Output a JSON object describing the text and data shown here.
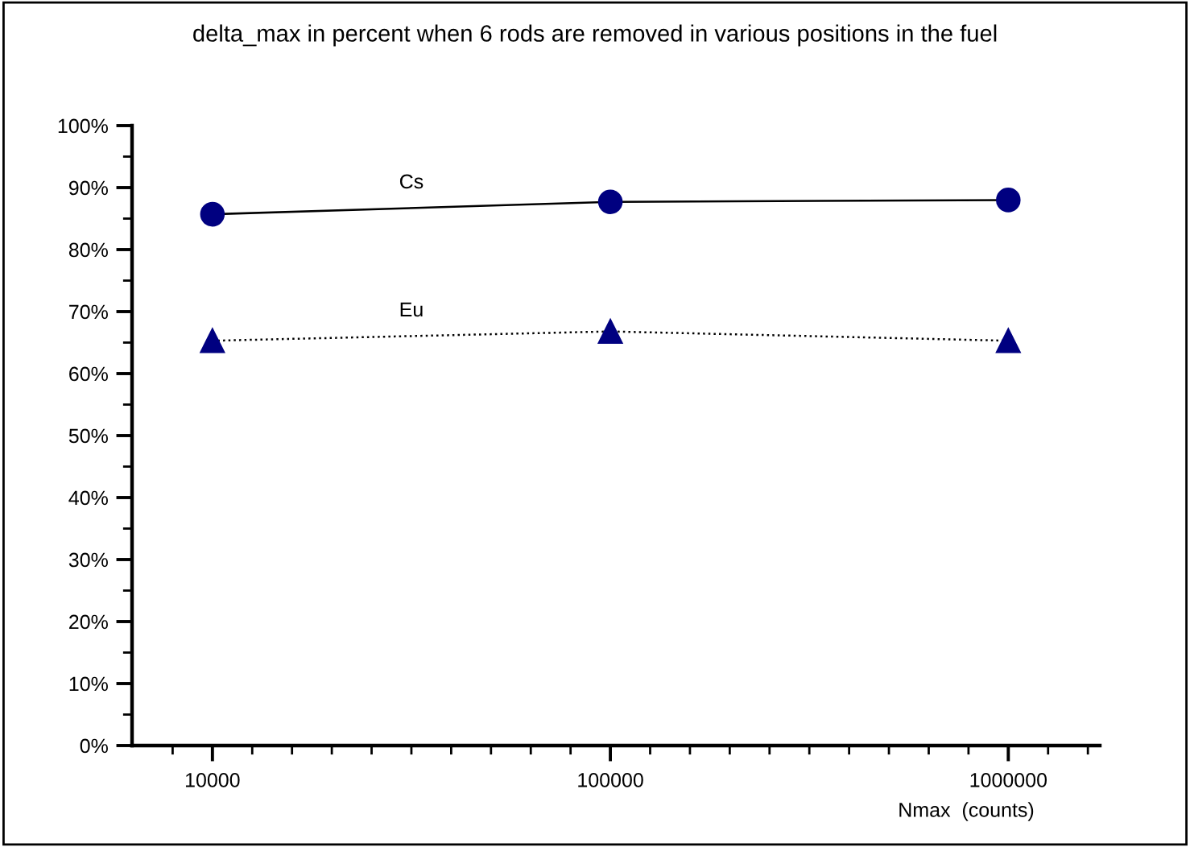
{
  "chart_data": {
    "type": "line",
    "title": "delta_max in percent when 6 rods are removed in various positions in the fuel",
    "xlabel": "Nmax  (counts)",
    "categories": [
      "10000",
      "100000",
      "1000000"
    ],
    "series": [
      {
        "name": "Cs",
        "color": "#000080",
        "values": [
          85.7,
          87.7,
          88.0
        ],
        "marker": "circle",
        "line_style": "solid"
      },
      {
        "name": "Eu",
        "color": "#000080",
        "values": [
          65.3,
          66.8,
          65.3
        ],
        "marker": "triangle",
        "line_style": "dotted"
      }
    ],
    "ylim": [
      0,
      100
    ],
    "yticks": [
      {
        "value": 0,
        "label": "0%"
      },
      {
        "value": 10,
        "label": "10%"
      },
      {
        "value": 20,
        "label": "20%"
      },
      {
        "value": 30,
        "label": "30%"
      },
      {
        "value": 40,
        "label": "40%"
      },
      {
        "value": 50,
        "label": "50%"
      },
      {
        "value": 60,
        "label": "60%"
      },
      {
        "value": 70,
        "label": "70%"
      },
      {
        "value": 80,
        "label": "80%"
      },
      {
        "value": 90,
        "label": "90%"
      },
      {
        "value": 100,
        "label": "100%"
      }
    ],
    "grid": false,
    "legend": false
  }
}
